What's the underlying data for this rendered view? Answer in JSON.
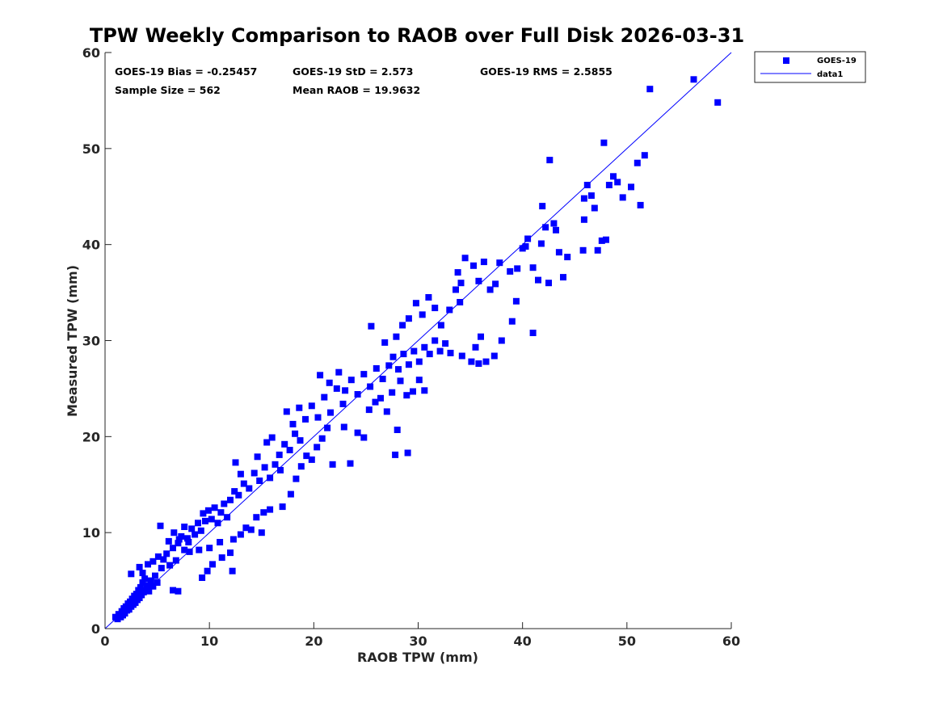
{
  "chart_data": {
    "type": "scatter",
    "title": "TPW Weekly Comparison to RAOB over Full Disk 2026-03-31",
    "xlabel": "RAOB TPW (mm)",
    "ylabel": "Measured TPW (mm)",
    "xlim": [
      0,
      60
    ],
    "ylim": [
      0,
      60
    ],
    "xticks": [
      "0",
      "10",
      "20",
      "30",
      "40",
      "50",
      "60"
    ],
    "yticks": [
      "0",
      "10",
      "20",
      "30",
      "40",
      "50",
      "60"
    ],
    "grid": false,
    "legend_position": "outside-top-right",
    "stats": {
      "bias": "GOES-19 Bias = -0.25457",
      "std": "GOES-19 StD = 2.573",
      "rms": "GOES-19 RMS = 2.5855",
      "sample": "Sample Size = 562",
      "mean": "Mean RAOB = 19.9632"
    },
    "series": [
      {
        "name": "GOES-19",
        "marker": "square",
        "color": "#0000ff",
        "points": [
          [
            1.0,
            1.2
          ],
          [
            1.2,
            1.0
          ],
          [
            1.3,
            1.5
          ],
          [
            1.5,
            1.2
          ],
          [
            1.6,
            1.8
          ],
          [
            1.7,
            1.4
          ],
          [
            1.8,
            2.1
          ],
          [
            1.9,
            1.6
          ],
          [
            2.0,
            2.3
          ],
          [
            2.1,
            1.9
          ],
          [
            2.2,
            2.6
          ],
          [
            2.3,
            2.0
          ],
          [
            2.4,
            2.8
          ],
          [
            2.5,
            2.3
          ],
          [
            2.6,
            3.1
          ],
          [
            2.7,
            2.5
          ],
          [
            2.8,
            3.4
          ],
          [
            2.9,
            2.7
          ],
          [
            3.0,
            3.6
          ],
          [
            3.1,
            3.0
          ],
          [
            3.2,
            4.0
          ],
          [
            3.3,
            3.2
          ],
          [
            3.4,
            4.3
          ],
          [
            3.5,
            3.5
          ],
          [
            3.6,
            4.8
          ],
          [
            3.7,
            3.8
          ],
          [
            3.8,
            5.2
          ],
          [
            3.9,
            4.0
          ],
          [
            4.0,
            4.5
          ],
          [
            4.2,
            3.9
          ],
          [
            4.4,
            5.0
          ],
          [
            4.6,
            4.4
          ],
          [
            4.8,
            5.5
          ],
          [
            5.0,
            4.8
          ],
          [
            2.5,
            5.7
          ],
          [
            3.3,
            6.4
          ],
          [
            3.6,
            5.8
          ],
          [
            4.1,
            6.7
          ],
          [
            4.6,
            7.0
          ],
          [
            5.1,
            7.5
          ],
          [
            5.4,
            6.3
          ],
          [
            5.6,
            7.2
          ],
          [
            5.9,
            7.8
          ],
          [
            6.2,
            6.6
          ],
          [
            6.5,
            8.4
          ],
          [
            6.8,
            7.1
          ],
          [
            7.0,
            8.9
          ],
          [
            7.3,
            9.6
          ],
          [
            7.6,
            8.2
          ],
          [
            7.9,
            9.4
          ],
          [
            5.3,
            10.7
          ],
          [
            6.1,
            9.1
          ],
          [
            6.6,
            10.0
          ],
          [
            7.1,
            9.3
          ],
          [
            7.6,
            10.6
          ],
          [
            8.0,
            9.0
          ],
          [
            8.3,
            10.4
          ],
          [
            8.6,
            9.8
          ],
          [
            8.9,
            11.0
          ],
          [
            9.2,
            10.2
          ],
          [
            9.4,
            12.0
          ],
          [
            9.6,
            11.2
          ],
          [
            9.9,
            12.3
          ],
          [
            10.2,
            11.4
          ],
          [
            10.5,
            12.6
          ],
          [
            10.8,
            11.0
          ],
          [
            11.1,
            12.1
          ],
          [
            11.4,
            13.0
          ],
          [
            11.7,
            11.6
          ],
          [
            12.0,
            13.4
          ],
          [
            6.5,
            4.0
          ],
          [
            7.0,
            3.9
          ],
          [
            9.3,
            5.3
          ],
          [
            9.8,
            6.0
          ],
          [
            12.2,
            6.0
          ],
          [
            10.3,
            6.7
          ],
          [
            11.2,
            7.4
          ],
          [
            12.0,
            7.9
          ],
          [
            8.1,
            8.0
          ],
          [
            9.0,
            8.2
          ],
          [
            10.0,
            8.4
          ],
          [
            11.0,
            9.0
          ],
          [
            12.3,
            9.3
          ],
          [
            13.0,
            9.8
          ],
          [
            13.5,
            10.5
          ],
          [
            14.0,
            10.3
          ],
          [
            15.0,
            10.0
          ],
          [
            14.5,
            11.6
          ],
          [
            15.2,
            12.1
          ],
          [
            15.8,
            12.4
          ],
          [
            12.4,
            14.3
          ],
          [
            12.8,
            13.9
          ],
          [
            13.3,
            15.1
          ],
          [
            13.8,
            14.6
          ],
          [
            14.3,
            16.2
          ],
          [
            14.8,
            15.4
          ],
          [
            15.3,
            16.8
          ],
          [
            15.8,
            15.7
          ],
          [
            16.3,
            17.1
          ],
          [
            16.8,
            16.5
          ],
          [
            12.5,
            17.3
          ],
          [
            13.0,
            16.1
          ],
          [
            14.6,
            17.9
          ],
          [
            15.5,
            19.4
          ],
          [
            16.0,
            19.9
          ],
          [
            16.7,
            18.1
          ],
          [
            17.2,
            19.2
          ],
          [
            17.7,
            18.6
          ],
          [
            18.2,
            20.3
          ],
          [
            18.7,
            19.6
          ],
          [
            17.0,
            12.7
          ],
          [
            17.8,
            14.0
          ],
          [
            18.3,
            15.6
          ],
          [
            18.8,
            16.9
          ],
          [
            19.3,
            18.0
          ],
          [
            19.8,
            17.6
          ],
          [
            20.3,
            18.9
          ],
          [
            20.8,
            19.8
          ],
          [
            21.3,
            20.9
          ],
          [
            21.8,
            17.1
          ],
          [
            17.4,
            22.6
          ],
          [
            18.0,
            21.3
          ],
          [
            18.6,
            23.0
          ],
          [
            19.2,
            21.8
          ],
          [
            19.8,
            23.2
          ],
          [
            20.4,
            22.0
          ],
          [
            21.0,
            24.1
          ],
          [
            21.6,
            22.5
          ],
          [
            22.2,
            25.0
          ],
          [
            22.8,
            23.4
          ],
          [
            20.6,
            26.4
          ],
          [
            21.5,
            25.6
          ],
          [
            22.4,
            26.7
          ],
          [
            23.0,
            24.8
          ],
          [
            23.6,
            25.9
          ],
          [
            24.2,
            24.4
          ],
          [
            24.8,
            26.5
          ],
          [
            25.4,
            25.2
          ],
          [
            26.0,
            27.1
          ],
          [
            26.6,
            26.0
          ],
          [
            22.9,
            21.0
          ],
          [
            23.5,
            17.2
          ],
          [
            24.2,
            20.4
          ],
          [
            24.8,
            19.9
          ],
          [
            25.3,
            22.8
          ],
          [
            25.9,
            23.6
          ],
          [
            26.4,
            24.0
          ],
          [
            27.0,
            22.6
          ],
          [
            27.8,
            18.1
          ],
          [
            28.0,
            20.7
          ],
          [
            29.0,
            18.3
          ],
          [
            27.5,
            24.6
          ],
          [
            28.3,
            25.8
          ],
          [
            28.9,
            24.3
          ],
          [
            29.5,
            24.7
          ],
          [
            30.1,
            25.9
          ],
          [
            30.6,
            24.8
          ],
          [
            27.2,
            27.4
          ],
          [
            27.6,
            28.3
          ],
          [
            28.1,
            27.0
          ],
          [
            28.6,
            28.6
          ],
          [
            29.1,
            27.5
          ],
          [
            29.6,
            28.9
          ],
          [
            30.1,
            27.8
          ],
          [
            30.6,
            29.3
          ],
          [
            31.1,
            28.6
          ],
          [
            31.6,
            30.0
          ],
          [
            32.1,
            28.9
          ],
          [
            32.6,
            29.7
          ],
          [
            33.1,
            28.7
          ],
          [
            25.5,
            31.5
          ],
          [
            26.8,
            29.8
          ],
          [
            27.9,
            30.4
          ],
          [
            28.5,
            31.6
          ],
          [
            29.1,
            32.3
          ],
          [
            29.8,
            33.9
          ],
          [
            30.4,
            32.7
          ],
          [
            31.0,
            34.5
          ],
          [
            31.6,
            33.4
          ],
          [
            32.2,
            31.6
          ],
          [
            33.0,
            33.2
          ],
          [
            33.6,
            35.3
          ],
          [
            34.1,
            36.0
          ],
          [
            34.5,
            38.6
          ],
          [
            35.3,
            37.8
          ],
          [
            35.8,
            36.2
          ],
          [
            36.3,
            38.2
          ],
          [
            36.9,
            35.3
          ],
          [
            37.4,
            35.9
          ],
          [
            37.8,
            38.1
          ],
          [
            33.8,
            37.1
          ],
          [
            34.2,
            28.4
          ],
          [
            35.1,
            27.8
          ],
          [
            35.8,
            27.6
          ],
          [
            36.5,
            27.8
          ],
          [
            37.3,
            28.4
          ],
          [
            38.0,
            30.0
          ],
          [
            36.0,
            30.4
          ],
          [
            34.0,
            34.0
          ],
          [
            35.5,
            29.3
          ],
          [
            39.0,
            32.0
          ],
          [
            39.5,
            37.5
          ],
          [
            40.0,
            39.6
          ],
          [
            40.5,
            40.6
          ],
          [
            41.0,
            37.6
          ],
          [
            41.5,
            36.3
          ],
          [
            41.8,
            40.1
          ],
          [
            42.2,
            41.8
          ],
          [
            42.5,
            36.0
          ],
          [
            43.0,
            42.2
          ],
          [
            43.5,
            39.2
          ],
          [
            43.9,
            36.6
          ],
          [
            44.3,
            38.7
          ],
          [
            41.0,
            30.8
          ],
          [
            43.2,
            41.5
          ],
          [
            42.6,
            48.8
          ],
          [
            40.3,
            39.8
          ],
          [
            41.9,
            44.0
          ],
          [
            39.4,
            34.1
          ],
          [
            38.8,
            37.2
          ],
          [
            45.8,
            39.4
          ],
          [
            45.9,
            44.8
          ],
          [
            46.2,
            46.2
          ],
          [
            46.6,
            45.1
          ],
          [
            46.9,
            43.8
          ],
          [
            47.2,
            39.4
          ],
          [
            47.6,
            40.4
          ],
          [
            48.0,
            40.5
          ],
          [
            48.3,
            46.2
          ],
          [
            48.7,
            47.1
          ],
          [
            47.8,
            50.6
          ],
          [
            49.1,
            46.5
          ],
          [
            49.6,
            44.9
          ],
          [
            50.4,
            46.0
          ],
          [
            51.0,
            48.5
          ],
          [
            51.3,
            44.1
          ],
          [
            51.7,
            49.3
          ],
          [
            45.9,
            42.6
          ],
          [
            52.2,
            56.2
          ],
          [
            56.4,
            57.2
          ],
          [
            58.7,
            54.8
          ]
        ]
      },
      {
        "name": "data1",
        "type": "line",
        "color": "#0000ff",
        "points": [
          [
            0,
            0
          ],
          [
            60,
            60
          ]
        ]
      }
    ]
  }
}
